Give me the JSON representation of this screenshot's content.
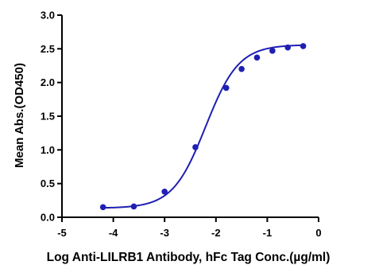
{
  "chart_data": {
    "type": "scatter",
    "title": "",
    "xlabel": "Log Anti-LILRB1 Antibody, hFc Tag Conc.(µg/ml)",
    "ylabel": "Mean Abs.(OD450)",
    "xlim": [
      -5,
      0
    ],
    "ylim": [
      0,
      3.0
    ],
    "x_ticks": [
      -5,
      -4,
      -3,
      -2,
      -1,
      0
    ],
    "x_tick_labels": [
      "-5",
      "-4",
      "-3",
      "-2",
      "-1",
      "0"
    ],
    "y_ticks": [
      0,
      0.5,
      1.0,
      1.5,
      2.0,
      2.5,
      3.0
    ],
    "y_tick_labels": [
      "0.0",
      "0.5",
      "1.0",
      "1.5",
      "2.0",
      "2.5",
      "3.0"
    ],
    "grid": false,
    "legend": "none",
    "color": "#1f1fb4",
    "series": [
      {
        "x": [
          -4.2,
          -3.6,
          -3.0,
          -2.4,
          -1.8,
          -1.5,
          -1.2,
          -0.9,
          -0.6,
          -0.3
        ],
        "values": [
          0.15,
          0.16,
          0.38,
          1.04,
          1.92,
          2.2,
          2.37,
          2.47,
          2.52,
          2.54
        ],
        "fit": "4PL sigmoid"
      }
    ]
  }
}
